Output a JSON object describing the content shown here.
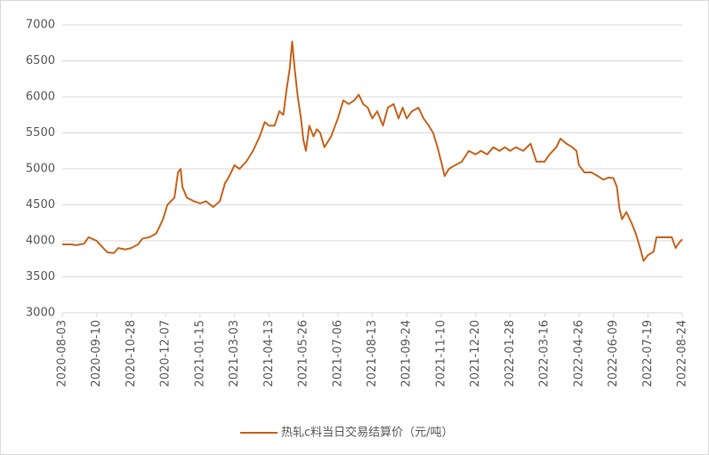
{
  "chart_data": {
    "type": "line",
    "x": [
      "2020-08-03",
      "2020-08-13",
      "2020-08-18",
      "2020-08-27",
      "2020-09-01",
      "2020-09-10",
      "2020-09-19",
      "2020-09-25",
      "2020-10-04",
      "2020-10-10",
      "2020-10-20",
      "2020-10-28",
      "2020-11-05",
      "2020-11-10",
      "2020-11-18",
      "2020-11-26",
      "2020-12-04",
      "2020-12-09",
      "2020-12-17",
      "2020-12-21",
      "2020-12-24",
      "2020-12-26",
      "2020-12-31",
      "2021-01-08",
      "2021-01-15",
      "2021-01-23",
      "2021-02-02",
      "2021-02-11",
      "2021-02-18",
      "2021-02-24",
      "2021-03-03",
      "2021-03-09",
      "2021-03-17",
      "2021-03-25",
      "2021-04-02",
      "2021-04-08",
      "2021-04-13",
      "2021-04-20",
      "2021-04-26",
      "2021-05-01",
      "2021-05-05",
      "2021-05-09",
      "2021-05-12",
      "2021-05-15",
      "2021-05-19",
      "2021-05-23",
      "2021-05-26",
      "2021-05-29",
      "2021-06-02",
      "2021-06-07",
      "2021-06-11",
      "2021-06-15",
      "2021-06-20",
      "2021-06-28",
      "2021-07-06",
      "2021-07-12",
      "2021-07-18",
      "2021-07-24",
      "2021-07-29",
      "2021-08-03",
      "2021-08-08",
      "2021-08-13",
      "2021-08-19",
      "2021-08-26",
      "2021-09-01",
      "2021-09-08",
      "2021-09-14",
      "2021-09-19",
      "2021-09-24",
      "2021-10-01",
      "2021-10-10",
      "2021-10-17",
      "2021-10-24",
      "2021-10-30",
      "2021-11-05",
      "2021-11-10",
      "2021-11-14",
      "2021-11-19",
      "2021-11-26",
      "2021-12-04",
      "2021-12-12",
      "2021-12-20",
      "2021-12-26",
      "2022-01-02",
      "2022-01-09",
      "2022-01-16",
      "2022-01-22",
      "2022-01-28",
      "2022-02-05",
      "2022-02-15",
      "2022-02-25",
      "2022-03-05",
      "2022-03-11",
      "2022-03-16",
      "2022-03-22",
      "2022-03-30",
      "2022-04-04",
      "2022-04-11",
      "2022-04-18",
      "2022-04-23",
      "2022-04-26",
      "2022-05-03",
      "2022-05-12",
      "2022-05-20",
      "2022-05-27",
      "2022-06-03",
      "2022-06-09",
      "2022-06-13",
      "2022-06-16",
      "2022-06-19",
      "2022-06-24",
      "2022-06-30",
      "2022-07-05",
      "2022-07-10",
      "2022-07-14",
      "2022-07-19",
      "2022-07-25",
      "2022-07-28",
      "2022-08-02",
      "2022-08-09",
      "2022-08-13",
      "2022-08-17",
      "2022-08-21",
      "2022-08-24"
    ],
    "series": [
      {
        "name": "热轧c料当日交易结算价（元/吨）",
        "color": "#c8641e",
        "values": [
          3950,
          3950,
          3940,
          3960,
          4050,
          4000,
          3900,
          3840,
          3830,
          3900,
          3880,
          3900,
          3950,
          4030,
          4050,
          4100,
          4300,
          4500,
          4600,
          4950,
          5000,
          4750,
          4600,
          4550,
          4520,
          4550,
          4470,
          4550,
          4800,
          4900,
          5050,
          5000,
          5100,
          5250,
          5450,
          5650,
          5600,
          5600,
          5800,
          5750,
          6100,
          6400,
          6770,
          6400,
          6000,
          5700,
          5400,
          5250,
          5600,
          5450,
          5550,
          5500,
          5300,
          5450,
          5700,
          5950,
          5900,
          5950,
          6030,
          5900,
          5850,
          5700,
          5800,
          5600,
          5850,
          5900,
          5700,
          5850,
          5700,
          5800,
          5850,
          5700,
          5600,
          5500,
          5300,
          5100,
          4900,
          5000,
          5050,
          5100,
          5250,
          5200,
          5250,
          5200,
          5300,
          5250,
          5300,
          5250,
          5300,
          5250,
          5350,
          5100,
          5100,
          5100,
          5200,
          5300,
          5420,
          5350,
          5300,
          5250,
          5050,
          4950,
          4950,
          4900,
          4850,
          4880,
          4870,
          4750,
          4450,
          4300,
          4400,
          4250,
          4100,
          3900,
          3720,
          3800,
          3850,
          4050,
          4050,
          4050,
          4050,
          3900,
          3980,
          4020
        ]
      }
    ],
    "xlim": [
      "2020-08-03",
      "2022-08-24"
    ],
    "xticks": [
      "2020-08-03",
      "2020-09-10",
      "2020-10-28",
      "2020-12-07",
      "2021-01-15",
      "2021-03-03",
      "2021-04-13",
      "2021-05-26",
      "2021-07-06",
      "2021-08-13",
      "2021-09-24",
      "2021-11-10",
      "2021-12-20",
      "2022-01-28",
      "2022-03-16",
      "2022-04-26",
      "2022-06-09",
      "2022-07-19",
      "2022-08-24"
    ],
    "ylim": [
      3000,
      7000
    ],
    "yticks": [
      3000,
      3500,
      4000,
      4500,
      5000,
      5500,
      6000,
      6500,
      7000
    ],
    "grid": true,
    "legend": "bottom"
  }
}
